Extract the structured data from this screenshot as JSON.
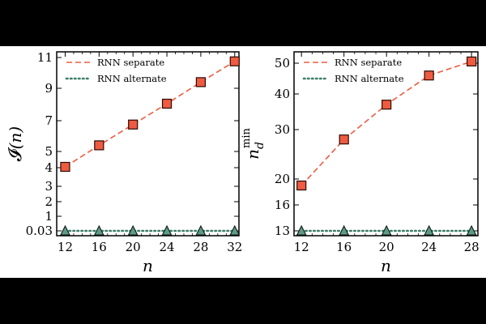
{
  "colors": {
    "separate": "#ef5b40",
    "separate_stroke": "#2a0a04",
    "alternate": "#3d7d6a",
    "alternate_marker": "#5f9a88",
    "background": "#ffffff",
    "letterbox": "#000000"
  },
  "chart_data": [
    {
      "type": "line",
      "xlabel": "n",
      "ylabel": "I(n)",
      "ylabel_parts": {
        "main": "𝓘",
        "paren": "(n)"
      },
      "xlim": [
        11,
        32.5
      ],
      "x_ticks": [
        "12",
        "16",
        "20",
        "24",
        "28",
        "32"
      ],
      "y_scale": "piecewise",
      "y_ticks": [
        "0.03",
        "1",
        "2",
        "3",
        "4",
        "5",
        "7",
        "9",
        "11"
      ],
      "legend": {
        "position": "top-left",
        "entries": [
          "RNN separate",
          "RNN alternate"
        ]
      },
      "series": [
        {
          "name": "RNN separate",
          "style": "dashed",
          "marker": "square",
          "x": [
            12,
            16,
            20,
            24,
            28,
            32
          ],
          "y": [
            4.05,
            5.4,
            6.75,
            8.05,
            9.4,
            10.75
          ]
        },
        {
          "name": "RNN alternate",
          "style": "dotted",
          "marker": "triangle",
          "x": [
            12,
            16,
            20,
            24,
            28,
            32
          ],
          "y": [
            0.03,
            0.03,
            0.03,
            0.03,
            0.03,
            0.03
          ]
        }
      ]
    },
    {
      "type": "line",
      "xlabel": "n",
      "ylabel": "n_d^min",
      "ylabel_parts": {
        "main": "n",
        "sub": "d",
        "sup": "min"
      },
      "xlim": [
        11.3,
        28.6
      ],
      "x_ticks": [
        "12",
        "16",
        "20",
        "24",
        "28"
      ],
      "y_scale": "piecewise",
      "y_ticks": [
        "13",
        "16",
        "20",
        "30",
        "40",
        "50"
      ],
      "legend": {
        "position": "top-left",
        "entries": [
          "RNN separate",
          "RNN alternate"
        ]
      },
      "series": [
        {
          "name": "RNN separate",
          "style": "dashed",
          "marker": "square",
          "x": [
            12,
            16,
            20,
            24,
            28
          ],
          "y": [
            19,
            28,
            37,
            46,
            51
          ]
        },
        {
          "name": "RNN alternate",
          "style": "dotted",
          "marker": "triangle",
          "x": [
            12,
            16,
            20,
            24,
            28
          ],
          "y": [
            13,
            13,
            13,
            13,
            13
          ]
        }
      ]
    }
  ]
}
